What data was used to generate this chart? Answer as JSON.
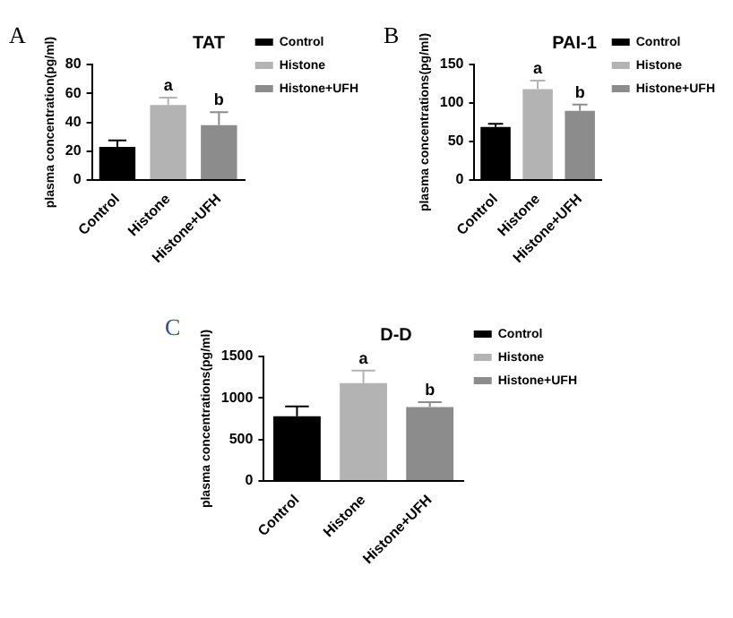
{
  "chart_data": [
    {
      "type": "bar",
      "title": "TAT",
      "ylabel": "plasma concentration(pg/ml)",
      "categories": [
        "Control",
        "Histone",
        "Histone+UFH"
      ],
      "ylim": [
        0,
        80
      ],
      "yticks": [
        0,
        20,
        40,
        60,
        80
      ],
      "grid": false,
      "legend": "right",
      "series": [
        {
          "name": "Control",
          "color": "#000000",
          "values": [
            23,
            null,
            null
          ],
          "errors": [
            4.5,
            null,
            null
          ]
        },
        {
          "name": "Histone",
          "color": "#b3b3b3",
          "values": [
            null,
            52,
            null
          ],
          "errors": [
            null,
            5,
            null
          ]
        },
        {
          "name": "Histone+UFH",
          "color": "#8c8c8c",
          "values": [
            null,
            null,
            38
          ],
          "errors": [
            null,
            null,
            9
          ]
        }
      ],
      "annotations": [
        "A",
        {
          "text": "a",
          "x": "Histone",
          "y": 57
        },
        {
          "text": "b",
          "x": "Histone+UFH",
          "y": 47
        }
      ]
    },
    {
      "type": "bar",
      "title": "PAI-1",
      "ylabel": "plasma concentrations(pg/ml)",
      "categories": [
        "Control",
        "Histone",
        "Histone+UFH"
      ],
      "ylim": [
        0,
        150
      ],
      "yticks": [
        0,
        50,
        100,
        150
      ],
      "grid": false,
      "legend": "right",
      "series": [
        {
          "name": "Control",
          "color": "#000000",
          "values": [
            69,
            null,
            null
          ],
          "errors": [
            4,
            null,
            null
          ]
        },
        {
          "name": "Histone",
          "color": "#b3b3b3",
          "values": [
            null,
            118,
            null
          ],
          "errors": [
            null,
            11,
            null
          ]
        },
        {
          "name": "Histone+UFH",
          "color": "#8c8c8c",
          "values": [
            null,
            null,
            90
          ],
          "errors": [
            null,
            null,
            8
          ]
        }
      ],
      "annotations": [
        "B",
        {
          "text": "a",
          "x": "Histone",
          "y": 129
        },
        {
          "text": "b",
          "x": "Histone+UFH",
          "y": 98
        }
      ]
    },
    {
      "type": "bar",
      "title": "D-D",
      "ylabel": "plasma concentrations(pg/ml)",
      "categories": [
        "Control",
        "Histone",
        "Histone+UFH"
      ],
      "ylim": [
        0,
        1500
      ],
      "yticks": [
        0,
        500,
        1000,
        1500
      ],
      "grid": false,
      "legend": "right",
      "series": [
        {
          "name": "Control",
          "color": "#000000",
          "values": [
            780,
            null,
            null
          ],
          "errors": [
            120,
            null,
            null
          ]
        },
        {
          "name": "Histone",
          "color": "#b3b3b3",
          "values": [
            null,
            1180,
            null
          ],
          "errors": [
            null,
            150,
            null
          ]
        },
        {
          "name": "Histone+UFH",
          "color": "#8c8c8c",
          "values": [
            null,
            null,
            890
          ],
          "errors": [
            null,
            null,
            60
          ]
        }
      ],
      "annotations": [
        "C",
        {
          "text": "a",
          "x": "Histone",
          "y": 1330
        },
        {
          "text": "b",
          "x": "Histone+UFH",
          "y": 950
        }
      ]
    }
  ]
}
